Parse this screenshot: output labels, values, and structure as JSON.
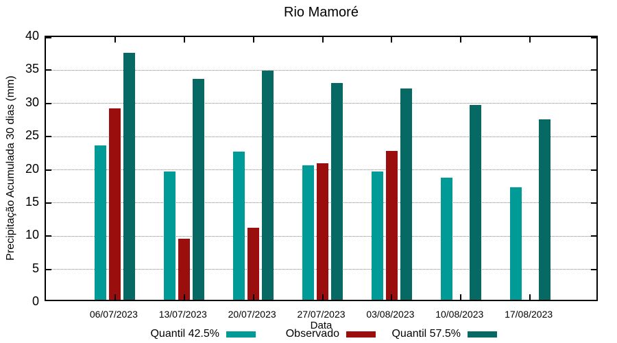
{
  "title": "Rio Mamoré",
  "chart_data": {
    "type": "bar",
    "title": "Rio Mamoré",
    "xlabel": "Data",
    "ylabel": "Precipitação Acumulada 30 dias (mm)",
    "ylim": [
      0,
      40
    ],
    "yticks": [
      0,
      5,
      10,
      15,
      20,
      25,
      30,
      35,
      40
    ],
    "grid": "dotted horizontal gridlines at each y tick",
    "legend_position": "below",
    "categories": [
      "06/07/2023",
      "13/07/2023",
      "20/07/2023",
      "27/07/2023",
      "03/08/2023",
      "10/08/2023",
      "17/08/2023"
    ],
    "series": [
      {
        "name": "Quantil 42.5%",
        "color": "#009B96",
        "values": [
          23.3,
          19.3,
          22.3,
          20.3,
          19.3,
          18.4,
          17.0
        ]
      },
      {
        "name": "Observado",
        "color": "#9A0E0E",
        "values": [
          28.8,
          9.2,
          10.9,
          20.6,
          22.4,
          null,
          null
        ]
      },
      {
        "name": "Quantil 57.5%",
        "color": "#066964",
        "values": [
          37.2,
          33.3,
          34.5,
          32.7,
          31.8,
          29.4,
          27.2
        ]
      }
    ]
  },
  "colors": {
    "background": "#ffffff",
    "axis": "#000000",
    "gridline": "#7f7f7f",
    "quantil_42_5": "#009B96",
    "observado": "#9A0E0E",
    "quantil_57_5": "#066964"
  }
}
